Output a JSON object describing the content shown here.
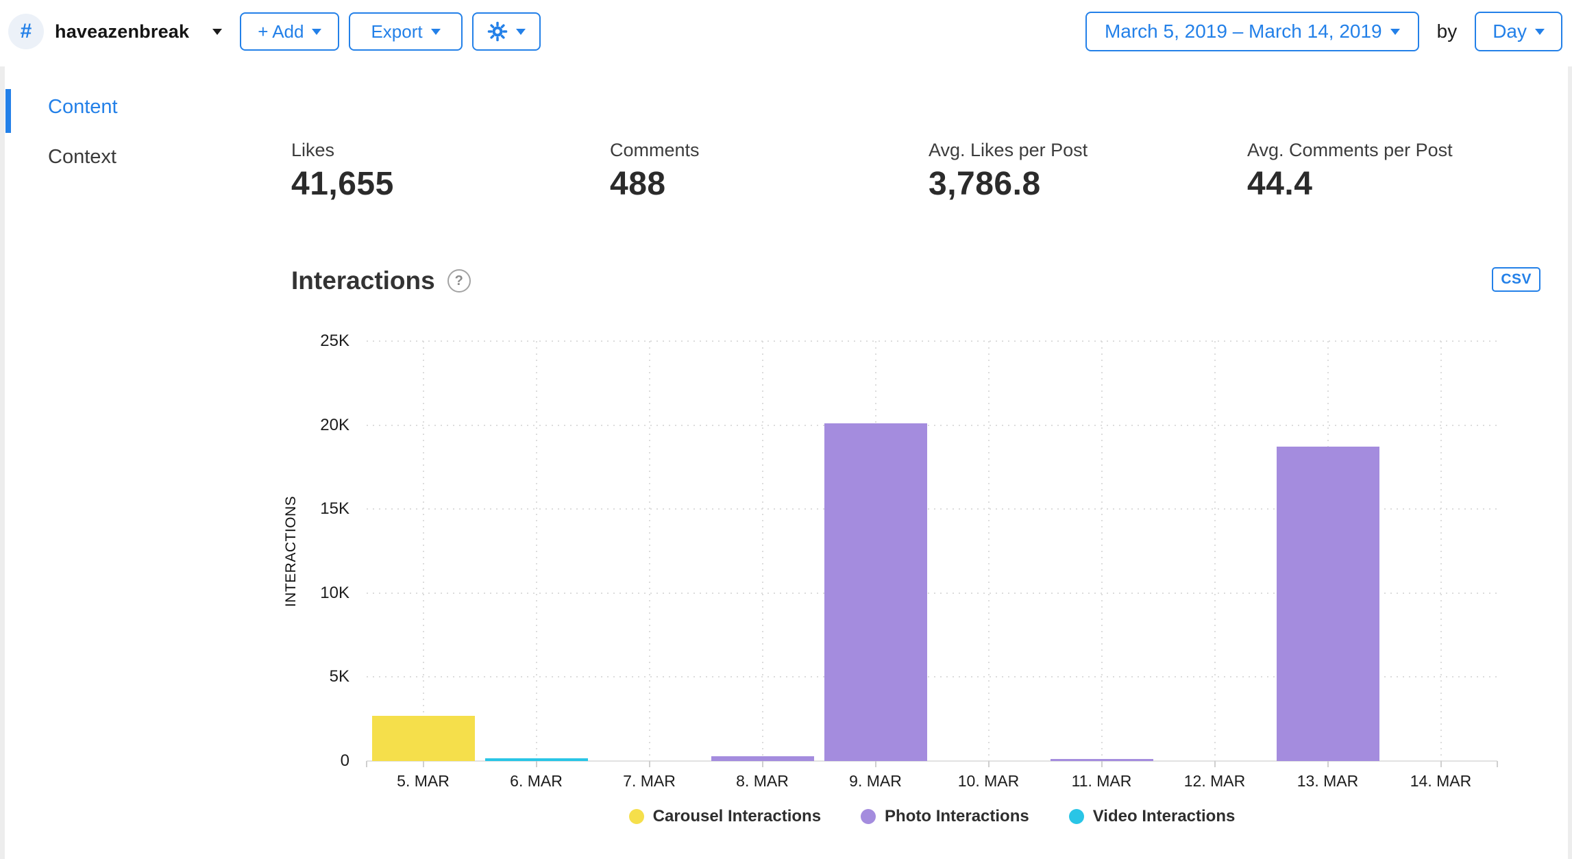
{
  "header": {
    "hashtag_symbol": "#",
    "account_name": "haveazenbreak",
    "add_label": "+ Add",
    "export_label": "Export",
    "date_range": "March 5, 2019 – March 14, 2019",
    "by_label": "by",
    "granularity": "Day"
  },
  "sidebar": {
    "items": [
      {
        "label": "Content",
        "active": true
      },
      {
        "label": "Context",
        "active": false
      }
    ]
  },
  "stats": [
    {
      "label": "Likes",
      "value": "41,655"
    },
    {
      "label": "Comments",
      "value": "488"
    },
    {
      "label": "Avg. Likes per Post",
      "value": "3,786.8"
    },
    {
      "label": "Avg. Comments per Post",
      "value": "44.4"
    }
  ],
  "section": {
    "title": "Interactions",
    "help_symbol": "?",
    "csv_label": "CSV"
  },
  "colors": {
    "accent": "#2380E8",
    "carousel": "#F5DF4B",
    "photo": "#A48CDE",
    "video": "#29C5E6",
    "hash_avatar_bg": "#ECF1F8"
  },
  "chart_data": {
    "type": "bar",
    "title": "Interactions",
    "xlabel": "",
    "ylabel": "INTERACTIONS",
    "ylim": [
      0,
      25000
    ],
    "yticks": [
      0,
      5000,
      10000,
      15000,
      20000,
      25000
    ],
    "ytick_labels": [
      "0",
      "5K",
      "10K",
      "15K",
      "20K",
      "25K"
    ],
    "grid": true,
    "legend_position": "bottom",
    "categories": [
      "5. MAR",
      "6. MAR",
      "7. MAR",
      "8. MAR",
      "9. MAR",
      "10. MAR",
      "11. MAR",
      "12. MAR",
      "13. MAR",
      "14. MAR"
    ],
    "series": [
      {
        "name": "Carousel Interactions",
        "color": "#F5DF4B",
        "values": [
          2700,
          0,
          0,
          0,
          0,
          0,
          0,
          0,
          0,
          0
        ]
      },
      {
        "name": "Photo Interactions",
        "color": "#A48CDE",
        "values": [
          0,
          0,
          0,
          300,
          20100,
          0,
          100,
          0,
          18700,
          0
        ]
      },
      {
        "name": "Video Interactions",
        "color": "#29C5E6",
        "values": [
          0,
          150,
          0,
          0,
          0,
          0,
          0,
          0,
          0,
          0
        ]
      }
    ]
  }
}
